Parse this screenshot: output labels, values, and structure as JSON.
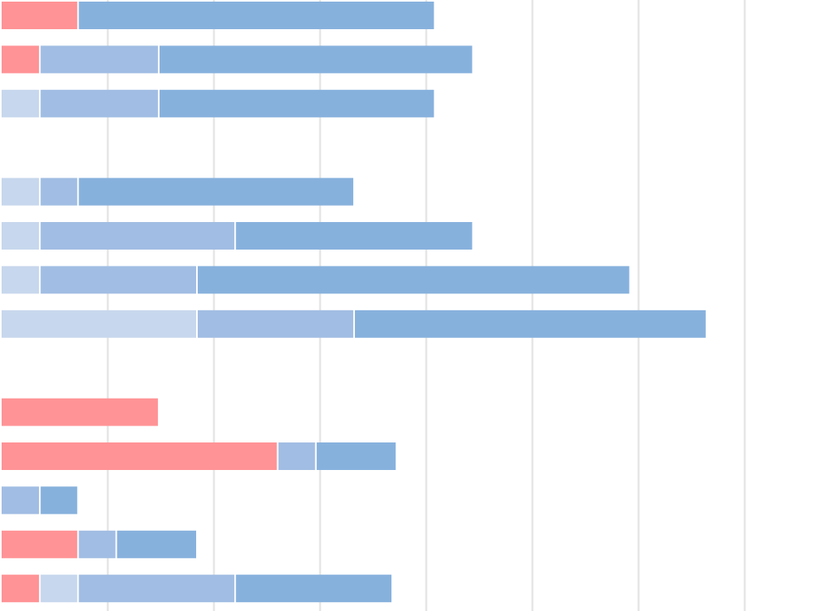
{
  "chart_data": {
    "type": "bar",
    "orientation": "horizontal",
    "stacked": true,
    "title": "",
    "xlabel": "",
    "ylabel": "",
    "xlim": [
      0,
      19.5
    ],
    "grid": true,
    "legend": "none",
    "colors": {
      "red": "#ff9396",
      "light": "#c7d7ed",
      "medium": "#a1bde3",
      "dark": "#87b1dd"
    },
    "gridline_color": "#e6e6e6",
    "groups": [
      {
        "rows": [
          {
            "segments": [
              {
                "color": "red",
                "value": 1.8
              },
              {
                "color": "dark",
                "value": 8.4
              }
            ]
          },
          {
            "segments": [
              {
                "color": "red",
                "value": 0.9
              },
              {
                "color": "medium",
                "value": 2.8
              },
              {
                "color": "dark",
                "value": 7.4
              }
            ]
          },
          {
            "segments": [
              {
                "color": "light",
                "value": 0.9
              },
              {
                "color": "medium",
                "value": 2.8
              },
              {
                "color": "dark",
                "value": 6.5
              }
            ]
          }
        ]
      },
      {
        "rows": [
          {
            "segments": [
              {
                "color": "light",
                "value": 0.9
              },
              {
                "color": "medium",
                "value": 0.9
              },
              {
                "color": "dark",
                "value": 6.5
              }
            ]
          },
          {
            "segments": [
              {
                "color": "light",
                "value": 0.9
              },
              {
                "color": "medium",
                "value": 4.6
              },
              {
                "color": "dark",
                "value": 5.6
              }
            ]
          },
          {
            "segments": [
              {
                "color": "light",
                "value": 0.9
              },
              {
                "color": "medium",
                "value": 3.7
              },
              {
                "color": "dark",
                "value": 10.2
              }
            ]
          },
          {
            "segments": [
              {
                "color": "light",
                "value": 4.6
              },
              {
                "color": "medium",
                "value": 3.7
              },
              {
                "color": "dark",
                "value": 8.3
              }
            ]
          }
        ]
      },
      {
        "rows": [
          {
            "segments": [
              {
                "color": "red",
                "value": 3.7
              }
            ]
          },
          {
            "segments": [
              {
                "color": "red",
                "value": 6.5
              },
              {
                "color": "medium",
                "value": 0.9
              },
              {
                "color": "dark",
                "value": 1.9
              }
            ]
          },
          {
            "segments": [
              {
                "color": "medium",
                "value": 0.9
              },
              {
                "color": "dark",
                "value": 0.9
              }
            ]
          },
          {
            "segments": [
              {
                "color": "red",
                "value": 1.8
              },
              {
                "color": "medium",
                "value": 0.9
              },
              {
                "color": "dark",
                "value": 1.9
              }
            ]
          },
          {
            "segments": [
              {
                "color": "red",
                "value": 0.9
              },
              {
                "color": "light",
                "value": 0.9
              },
              {
                "color": "medium",
                "value": 3.7
              },
              {
                "color": "dark",
                "value": 3.7
              }
            ]
          }
        ]
      }
    ],
    "gridlines_at": [
      2.5,
      5,
      7.5,
      10,
      12.5,
      15,
      17.5
    ]
  }
}
